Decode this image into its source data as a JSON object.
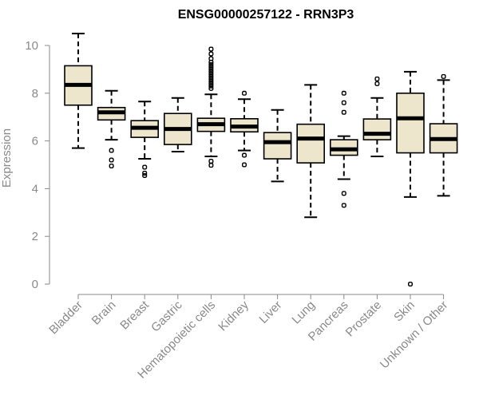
{
  "chart_data": {
    "type": "boxplot",
    "title": "ENSG00000257122 - RRN3P3",
    "xlabel": "",
    "ylabel": "Expression",
    "ylim": [
      0,
      10.5
    ],
    "yticks": [
      "0",
      "2",
      "4",
      "6",
      "8",
      "10"
    ],
    "grid": false,
    "box_fill": "#ede6cd",
    "categories": [
      "Bladder",
      "Brain",
      "Breast",
      "Gastric",
      "Hematopoietic cells",
      "Kidney",
      "Liver",
      "Lung",
      "Pancreas",
      "Prostate",
      "Skin",
      "Unknown / Other"
    ],
    "boxes": [
      {
        "whisker_low": 5.7,
        "q1": 7.5,
        "median": 8.35,
        "q3": 9.15,
        "whisker_high": 10.5,
        "outliers": []
      },
      {
        "whisker_low": 6.05,
        "q1": 6.88,
        "median": 7.2,
        "q3": 7.4,
        "whisker_high": 8.1,
        "outliers": [
          5.6,
          5.2,
          4.95
        ]
      },
      {
        "whisker_low": 5.25,
        "q1": 6.15,
        "median": 6.55,
        "q3": 6.85,
        "whisker_high": 7.65,
        "outliers": [
          4.9,
          4.65,
          4.55
        ]
      },
      {
        "whisker_low": 5.55,
        "q1": 5.85,
        "median": 6.5,
        "q3": 7.15,
        "whisker_high": 7.8,
        "outliers": []
      },
      {
        "whisker_low": 5.35,
        "q1": 6.4,
        "median": 6.7,
        "q3": 6.95,
        "whisker_high": 7.95,
        "outliers": [
          9.85,
          9.65,
          9.45,
          9.3,
          9.2,
          9.1,
          9.0,
          8.9,
          8.8,
          8.7,
          8.6,
          8.5,
          8.4,
          8.3,
          8.2,
          5.15,
          4.98
        ]
      },
      {
        "whisker_low": 5.6,
        "q1": 6.38,
        "median": 6.6,
        "q3": 6.93,
        "whisker_high": 7.75,
        "outliers": [
          8.0,
          5.4,
          5.0
        ]
      },
      {
        "whisker_low": 4.3,
        "q1": 5.25,
        "median": 5.95,
        "q3": 6.35,
        "whisker_high": 7.3,
        "outliers": []
      },
      {
        "whisker_low": 2.8,
        "q1": 5.08,
        "median": 6.1,
        "q3": 6.7,
        "whisker_high": 8.35,
        "outliers": []
      },
      {
        "whisker_low": 4.4,
        "q1": 5.4,
        "median": 5.65,
        "q3": 6.05,
        "whisker_high": 6.2,
        "outliers": [
          8.0,
          7.6,
          7.2,
          3.8,
          3.3
        ]
      },
      {
        "whisker_low": 5.35,
        "q1": 6.05,
        "median": 6.3,
        "q3": 6.92,
        "whisker_high": 7.8,
        "outliers": [
          8.6,
          8.4
        ]
      },
      {
        "whisker_low": 3.65,
        "q1": 5.5,
        "median": 6.95,
        "q3": 8.0,
        "whisker_high": 8.9,
        "outliers": [
          0.0
        ]
      },
      {
        "whisker_low": 3.7,
        "q1": 5.5,
        "median": 6.08,
        "q3": 6.72,
        "whisker_high": 8.55,
        "outliers": [
          8.7
        ]
      }
    ]
  }
}
